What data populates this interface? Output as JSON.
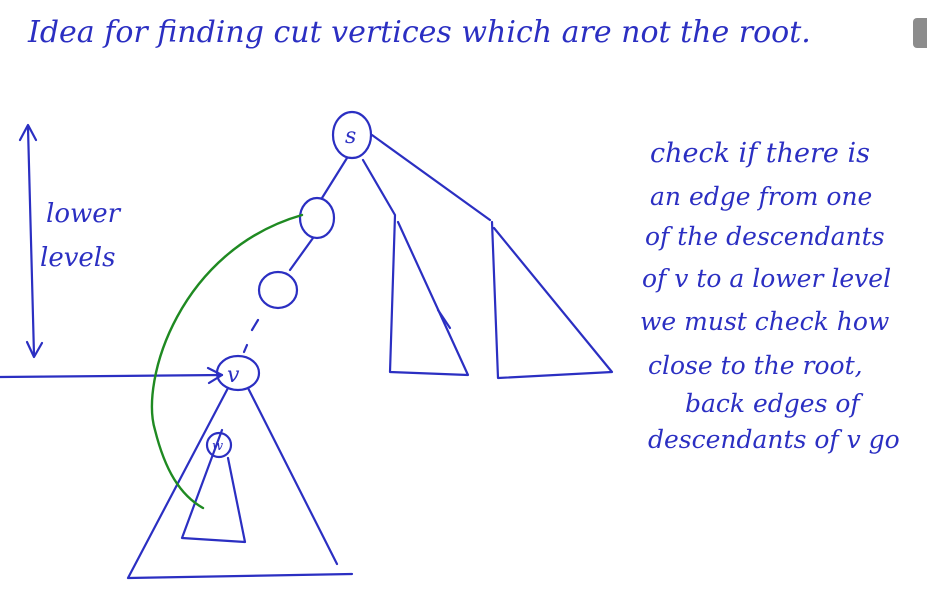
{
  "title": "Idea for finding cut vertices which are not the root.",
  "left_label": [
    "lower",
    "levels"
  ],
  "nodes": {
    "root": "s",
    "v": "v",
    "w": "w"
  },
  "note": [
    "check if there is",
    "an edge from one",
    "of the descendants",
    "of v to a lower level",
    "we must check how",
    "close to the root,",
    "back edges of",
    "descendants of v go"
  ],
  "colors": {
    "ink": "#2b2fc2",
    "back_edge": "#1f8a22"
  }
}
